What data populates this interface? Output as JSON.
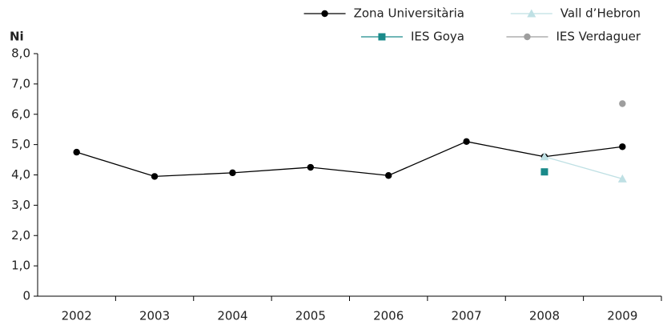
{
  "chart_data": {
    "type": "line",
    "y_axis_label": "Ni",
    "categories": [
      "2002",
      "2003",
      "2004",
      "2005",
      "2006",
      "2007",
      "2008",
      "2009"
    ],
    "series": [
      {
        "name": "Zona Universitària",
        "color": "#000000",
        "marker": "circle",
        "values": [
          4.75,
          3.95,
          4.07,
          4.25,
          3.98,
          5.1,
          4.6,
          4.93
        ]
      },
      {
        "name": "Vall d’Hebron",
        "color": "#bfe0e4",
        "marker": "triangle",
        "values": [
          null,
          null,
          null,
          null,
          null,
          null,
          4.6,
          3.87
        ]
      },
      {
        "name": "IES Goya",
        "color": "#1a8a8a",
        "marker": "square",
        "values": [
          null,
          null,
          null,
          null,
          null,
          null,
          4.1,
          null
        ]
      },
      {
        "name": "IES Verdaguer",
        "color": "#9e9e9e",
        "marker": "circle",
        "values": [
          null,
          null,
          null,
          null,
          null,
          null,
          null,
          6.35
        ]
      }
    ],
    "ylim": [
      0,
      8
    ],
    "yticks": [
      0,
      {
        "value": 1,
        "label": "1,0"
      },
      {
        "value": 2,
        "label": "2,0"
      },
      {
        "value": 3,
        "label": "3,0"
      },
      {
        "value": 4,
        "label": "4,0"
      },
      {
        "value": 5,
        "label": "5,0"
      },
      {
        "value": 6,
        "label": "6,0"
      },
      {
        "value": 7,
        "label": "7,0"
      },
      {
        "value": 8,
        "label": "8,0"
      }
    ],
    "grid": false,
    "legend_position": "top-right"
  }
}
